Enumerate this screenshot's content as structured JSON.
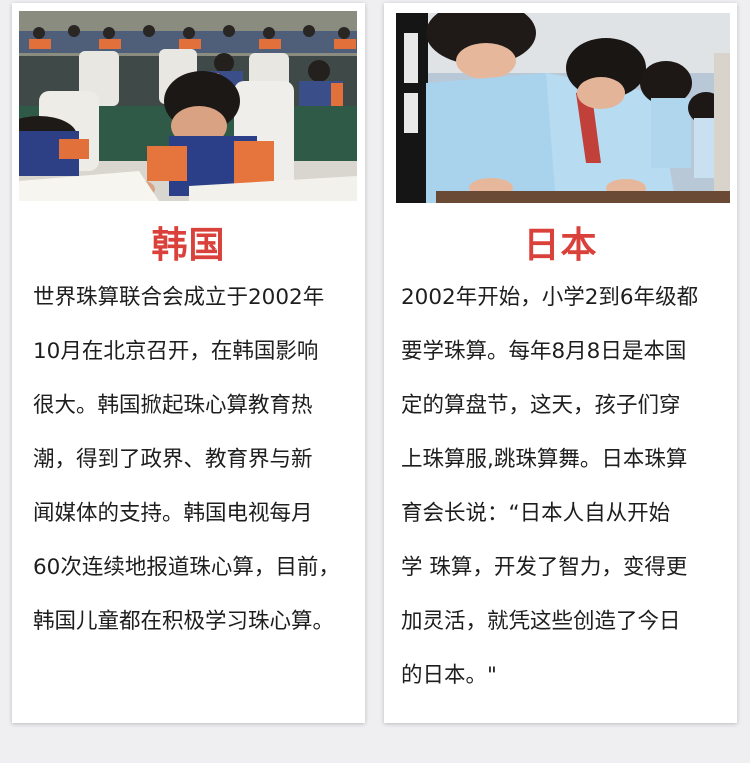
{
  "cards": [
    {
      "photo_description_icon": "classroom-photo-korea",
      "title": "韩国",
      "text": "世界珠算联合会成立于2002年\n10月在北京召开，在韩国影响\n很大。韩国掀起珠心算教育热\n潮，得到了政界、教育界与新\n闻媒体的支持。韩国电视每月\n60次连续地报道珠心算，目前，\n韩国儿童都在积极学习珠心算。"
    },
    {
      "photo_description_icon": "classroom-photo-japan",
      "title": "日本",
      "text": "2002年开始，小学2到6年级都\n要学珠算。每年8月8日是本国\n定的算盘节，这天，孩子们穿\n上珠算服,跳珠算舞。日本珠算\n育会长说：“日本人自从开始\n学 珠算，开发了智力，变得更\n加灵活，就凭这些创造了今日\n的日本。\""
    }
  ],
  "colors": {
    "title": "#d9413a",
    "background": "#efeff1",
    "card": "#ffffff"
  }
}
